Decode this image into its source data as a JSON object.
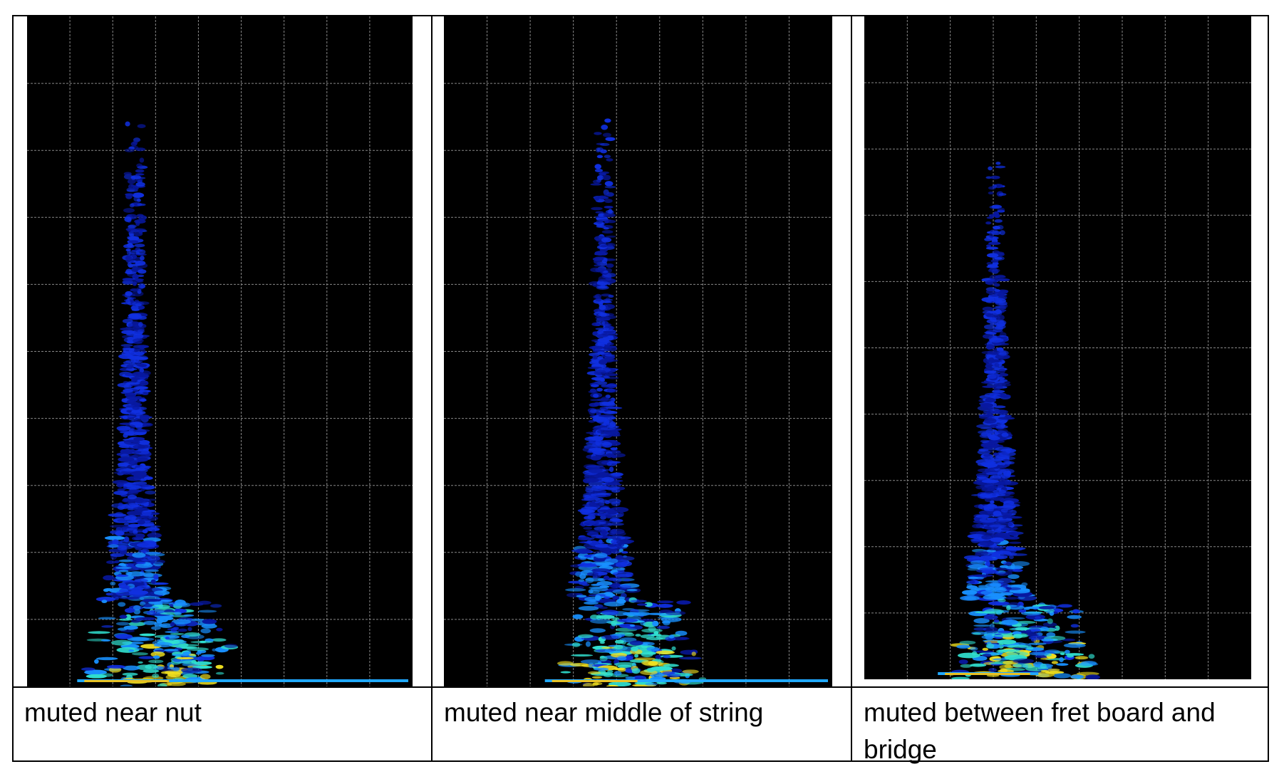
{
  "table": {
    "captions": [
      "muted near nut",
      "muted near middle of string",
      "muted between fret board and bridge"
    ]
  }
}
